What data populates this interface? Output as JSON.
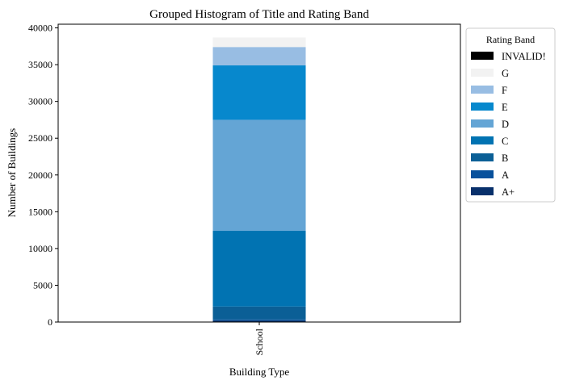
{
  "chart_data": {
    "type": "bar",
    "stacked": true,
    "title": "Grouped Histogram of Title and Rating Band",
    "xlabel": "Building Type",
    "ylabel": "Number of Buildings",
    "categories": [
      "School"
    ],
    "ylim": [
      0,
      40500
    ],
    "yticks": [
      0,
      5000,
      10000,
      15000,
      20000,
      25000,
      30000,
      35000,
      40000
    ],
    "grid": false,
    "legend": {
      "title": "Rating Band",
      "placement": "outside-right-top",
      "order": [
        "INVALID!",
        "G",
        "F",
        "E",
        "D",
        "C",
        "B",
        "A",
        "A+"
      ]
    },
    "series": [
      {
        "name": "A+",
        "color": "#08306b",
        "values": [
          200
        ]
      },
      {
        "name": "A",
        "color": "#08519c",
        "values": [
          150
        ]
      },
      {
        "name": "B",
        "color": "#0b5f96",
        "values": [
          1750
        ]
      },
      {
        "name": "C",
        "color": "#0173b2",
        "values": [
          10300
        ]
      },
      {
        "name": "D",
        "color": "#64a5d5",
        "values": [
          15100
        ]
      },
      {
        "name": "E",
        "color": "#0788cd",
        "values": [
          7400
        ]
      },
      {
        "name": "F",
        "color": "#98bde3",
        "values": [
          2500
        ]
      },
      {
        "name": "G",
        "color": "#f2f2f2",
        "values": [
          1300
        ]
      },
      {
        "name": "INVALID!",
        "color": "#000000",
        "values": [
          0
        ]
      }
    ]
  }
}
